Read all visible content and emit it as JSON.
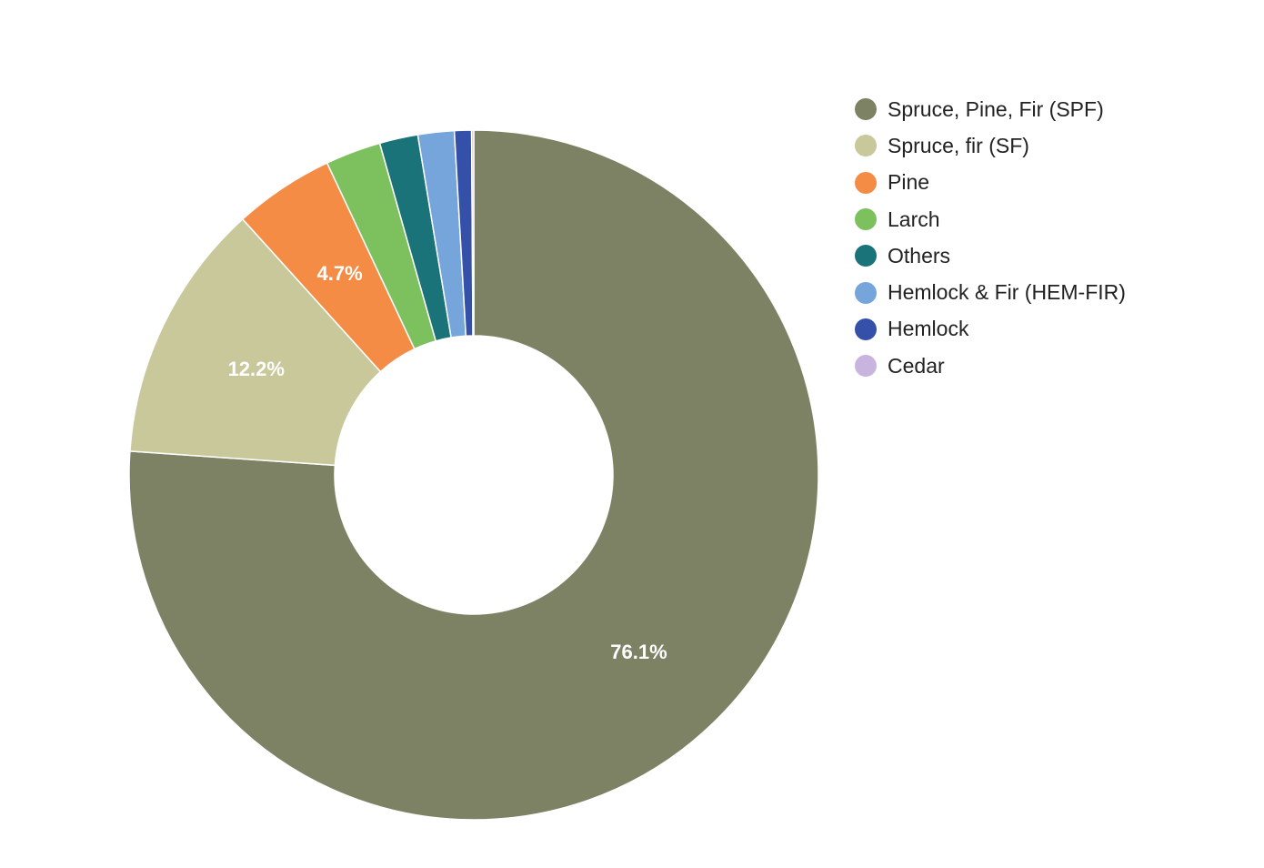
{
  "chart_data": {
    "type": "pie",
    "donut": true,
    "categories": [
      "Spruce, Pine, Fir (SPF)",
      "Spruce, fir (SF)",
      "Pine",
      "Larch",
      "Others",
      "Hemlock & Fir (HEM-FIR)",
      "Hemlock",
      "Cedar"
    ],
    "values": [
      76.1,
      12.2,
      4.7,
      2.6,
      1.8,
      1.7,
      0.8,
      0.1
    ],
    "colors": [
      "#7e8265",
      "#c8c89b",
      "#f58c45",
      "#7dc15e",
      "#1a7378",
      "#75a5db",
      "#3450a8",
      "#c9b4df"
    ],
    "labels": [
      "76.1%",
      "12.2%",
      "4.7%",
      "",
      "",
      "",
      "",
      ""
    ],
    "legend_position": "right"
  }
}
